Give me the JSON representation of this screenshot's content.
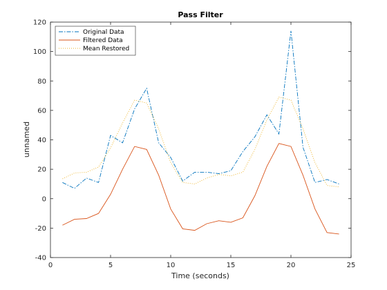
{
  "chart_data": {
    "type": "line",
    "title": "Pass Filter",
    "xlabel": "Time (seconds)",
    "ylabel": "unnamed",
    "xlim": [
      0,
      25
    ],
    "ylim": [
      -40,
      120
    ],
    "xticks": [
      0,
      5,
      10,
      15,
      20,
      25
    ],
    "yticks": [
      -40,
      -20,
      0,
      20,
      40,
      60,
      80,
      100,
      120
    ],
    "grid": false,
    "legend_position": "top-left",
    "x": [
      1,
      2,
      3,
      4,
      5,
      6,
      7,
      8,
      9,
      10,
      11,
      12,
      13,
      14,
      15,
      16,
      17,
      18,
      19,
      20,
      21,
      22,
      23,
      24
    ],
    "series": [
      {
        "name": "Original Data",
        "color": "#0072BD",
        "style": "dashdot",
        "values": [
          11,
          7,
          14,
          11,
          43,
          38,
          61,
          75,
          38,
          28,
          12,
          18,
          18,
          17,
          19,
          32,
          42,
          57,
          44,
          114,
          35,
          11,
          13,
          10
        ]
      },
      {
        "name": "Filtered Data",
        "color": "#D95319",
        "style": "solid",
        "values": [
          -18,
          -14,
          -13.5,
          -10,
          3,
          20,
          35.5,
          33.5,
          16,
          -7,
          -20.5,
          -21.5,
          -17,
          -15,
          -16,
          -13,
          2,
          22,
          37.5,
          35.5,
          16,
          -7,
          -23,
          -24
        ]
      },
      {
        "name": "Mean Restored",
        "color": "#EDB120",
        "style": "dotted",
        "values": [
          13.5,
          17.5,
          18,
          21.5,
          34.5,
          51.5,
          67,
          65,
          47.5,
          24.5,
          11,
          10,
          14,
          16.5,
          15.5,
          18,
          33.5,
          53.5,
          69,
          67,
          47.5,
          24.5,
          9,
          8
        ]
      }
    ]
  }
}
